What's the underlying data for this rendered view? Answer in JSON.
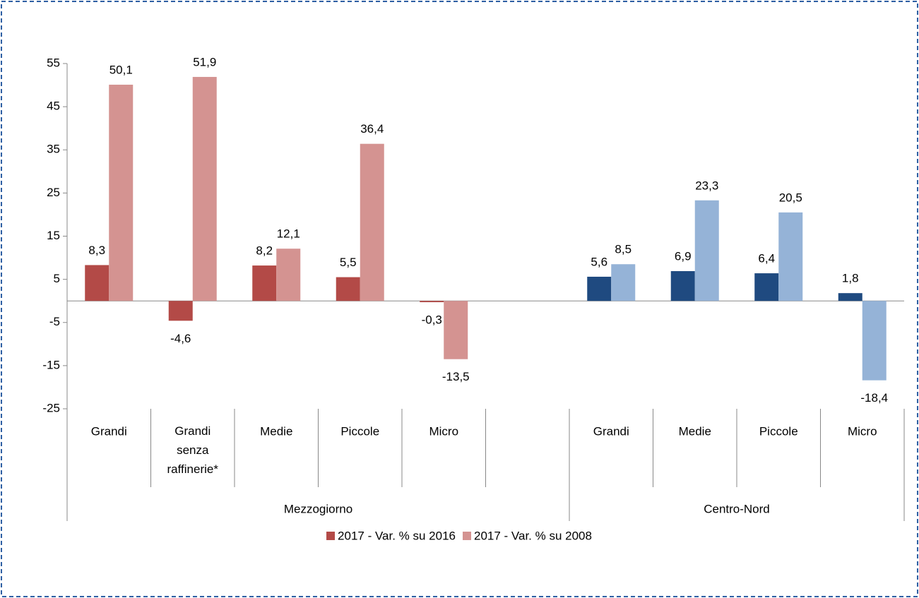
{
  "chart_data": {
    "type": "bar",
    "categories": [
      "Grandi",
      "Grandi\nsenza\nraffinerie*",
      "Medie",
      "Piccole",
      "Micro",
      null,
      "Grandi",
      "Medie",
      "Piccole",
      "Micro"
    ],
    "category_groups": [
      "Mezzogiorno",
      "Mezzogiorno",
      "Mezzogiorno",
      "Mezzogiorno",
      "Mezzogiorno",
      "Mezzogiorno",
      "Centro-Nord",
      "Centro-Nord",
      "Centro-Nord",
      "Centro-Nord"
    ],
    "series": [
      {
        "name": "2017 - Var. % su 2016",
        "color": "#b34a47",
        "colors": [
          "#b34a47",
          "#b34a47",
          "#b34a47",
          "#b34a47",
          "#b34a47",
          null,
          "#1f4a80",
          "#1f4a80",
          "#1f4a80",
          "#1f4a80"
        ],
        "values": [
          8.3,
          -4.6,
          8.2,
          5.5,
          -0.3,
          null,
          5.6,
          6.9,
          6.4,
          1.8
        ],
        "value_labels": [
          "8,3",
          "-4,6",
          "8,2",
          "5,5",
          "-0,3",
          null,
          "5,6",
          "6,9",
          "6,4",
          "1,8"
        ]
      },
      {
        "name": "2017 - Var. % su 2008",
        "color": "#d49391",
        "colors": [
          "#d49391",
          "#d49391",
          "#d49391",
          "#d49391",
          "#d49391",
          null,
          "#95b3d7",
          "#95b3d7",
          "#95b3d7",
          "#95b3d7"
        ],
        "values": [
          50.1,
          51.9,
          12.1,
          36.4,
          -13.5,
          null,
          8.5,
          23.3,
          20.5,
          -18.4
        ],
        "value_labels": [
          "50,1",
          "51,9",
          "12,1",
          "36,4",
          "-13,5",
          null,
          "8,5",
          "23,3",
          "20,5",
          "-18,4"
        ]
      }
    ],
    "ylim": [
      -25,
      55
    ],
    "yticks": [
      -25,
      -15,
      -5,
      5,
      15,
      25,
      35,
      45,
      55
    ],
    "grid": false,
    "legend": "bottom"
  }
}
